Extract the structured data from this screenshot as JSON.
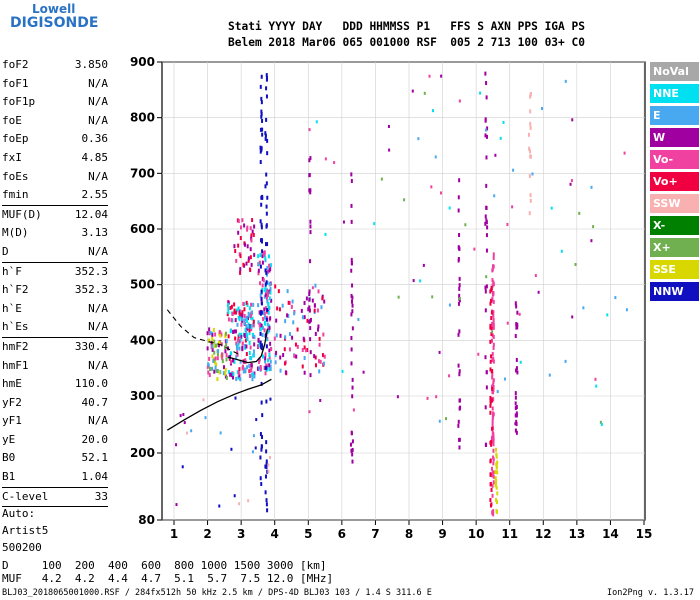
{
  "logo": {
    "top": "Lowell",
    "bottom": "DIGISONDE"
  },
  "header": {
    "line1": "Stati YYYY DAY   DDD HHMMSS P1   FFS S AXN PPS IGA PS",
    "line2": "Belem 2018 Mar06 065 001000 RSF  005 2 713 100 03+ C0"
  },
  "params": [
    {
      "name": "foF2",
      "value": "3.850"
    },
    {
      "name": "foF1",
      "value": "N/A"
    },
    {
      "name": "foF1p",
      "value": "N/A"
    },
    {
      "name": "foE",
      "value": "N/A"
    },
    {
      "name": "foEp",
      "value": "0.36"
    },
    {
      "name": "fxI",
      "value": "4.85"
    },
    {
      "name": "foEs",
      "value": "N/A"
    },
    {
      "name": "fmin",
      "value": "2.55",
      "sep": true
    },
    {
      "name": "MUF(D)",
      "value": "12.04"
    },
    {
      "name": "M(D)",
      "value": "3.13"
    },
    {
      "name": "D",
      "value": "N/A",
      "sep": true
    },
    {
      "name": "h`F",
      "value": "352.3"
    },
    {
      "name": "h`F2",
      "value": "352.3"
    },
    {
      "name": "h`E",
      "value": "N/A"
    },
    {
      "name": "h`Es",
      "value": "N/A",
      "sep": true
    },
    {
      "name": "hmF2",
      "value": "330.4"
    },
    {
      "name": "hmF1",
      "value": "N/A"
    },
    {
      "name": "hmE",
      "value": "110.0"
    },
    {
      "name": "yF2",
      "value": "40.7"
    },
    {
      "name": "yF1",
      "value": "N/A"
    },
    {
      "name": "yE",
      "value": "20.0"
    },
    {
      "name": "B0",
      "value": "52.1"
    },
    {
      "name": "B1",
      "value": "1.04",
      "sep": true
    },
    {
      "name": "C-level",
      "value": "33",
      "sep": true
    }
  ],
  "auto": {
    "l1": "Auto:",
    "l2": "Artist5",
    "l3": "500200"
  },
  "legend": [
    {
      "label": "NoVal",
      "color": "#a8a8a8"
    },
    {
      "label": "NNE",
      "color": "#00e0f0"
    },
    {
      "label": "E",
      "color": "#48a8f0"
    },
    {
      "label": "W",
      "color": "#a000a0"
    },
    {
      "label": "Vo-",
      "color": "#f040a0"
    },
    {
      "label": "Vo+",
      "color": "#f00040"
    },
    {
      "label": "SSW",
      "color": "#f8b0b0"
    },
    {
      "label": "X-",
      "color": "#008000"
    },
    {
      "label": "X+",
      "color": "#70b050"
    },
    {
      "label": "SSE",
      "color": "#d8d800"
    },
    {
      "label": "NNW",
      "color": "#1010c0"
    }
  ],
  "muf_table": {
    "d_row": "D     100  200  400  600  800 1000 1500 3000 [km]",
    "muf_row": "MUF   4.2  4.2  4.4  4.7  5.1  5.7  7.5 12.0 [MHz]"
  },
  "footer": {
    "left": "BLJ03_2018065001000.RSF / 284fx512h 50 kHz 2.5 km / DPS-4D BLJ03 103 / 1.4 S 311.6 E",
    "right": "Ion2Png v. 1.3.17"
  },
  "chart_data": {
    "type": "scatter",
    "xlim": [
      0.8,
      15
    ],
    "ylim": [
      80,
      900
    ],
    "xticks": [
      1,
      2,
      3,
      4,
      5,
      6,
      7,
      8,
      9,
      10,
      11,
      12,
      13,
      14,
      15
    ],
    "yticks": [
      80,
      200,
      300,
      400,
      500,
      600,
      700,
      800,
      900
    ],
    "ytick_labels": [
      "80",
      "200",
      "300",
      "400",
      "500",
      "600",
      "700",
      "800",
      "900"
    ],
    "grid": true,
    "profile_solid": [
      [
        0.8,
        240
      ],
      [
        1.3,
        258
      ],
      [
        1.8,
        275
      ],
      [
        2.3,
        290
      ],
      [
        2.8,
        303
      ],
      [
        3.2,
        312
      ],
      [
        3.6,
        320
      ],
      [
        3.9,
        330
      ]
    ],
    "profile_upper": [
      [
        2.6,
        370
      ],
      [
        2.9,
        365
      ],
      [
        3.2,
        360
      ],
      [
        3.45,
        362
      ],
      [
        3.6,
        372
      ],
      [
        3.7,
        392
      ],
      [
        3.78,
        420
      ]
    ],
    "profile_dashed": [
      [
        0.8,
        455
      ],
      [
        1.2,
        425
      ],
      [
        1.6,
        405
      ],
      [
        2.0,
        398
      ],
      [
        2.4,
        392
      ],
      [
        2.7,
        382
      ],
      [
        2.9,
        376
      ]
    ],
    "clusters": [
      {
        "x": [
          2.0,
          2.6
        ],
        "y": [
          330,
          420
        ],
        "n": 80,
        "colors": [
          "#f040a0",
          "#a000a0",
          "#48a8f0",
          "#70b050",
          "#d8d800"
        ]
      },
      {
        "x": [
          2.6,
          3.4
        ],
        "y": [
          330,
          470
        ],
        "n": 180,
        "colors": [
          "#48a8f0",
          "#f040a0",
          "#a000a0",
          "#00e0f0",
          "#f00040"
        ]
      },
      {
        "x": [
          3.5,
          3.9
        ],
        "y": [
          340,
          560
        ],
        "n": 140,
        "colors": [
          "#48a8f0",
          "#f040a0",
          "#a000a0",
          "#00e0f0"
        ]
      },
      {
        "x": [
          4.0,
          5.5
        ],
        "y": [
          340,
          500
        ],
        "n": 90,
        "colors": [
          "#a000a0",
          "#f040a0",
          "#48a8f0",
          "#f00040"
        ]
      },
      {
        "x": [
          2.8,
          3.4
        ],
        "y": [
          520,
          620
        ],
        "n": 40,
        "colors": [
          "#a000a0",
          "#f040a0",
          "#f00040"
        ]
      }
    ],
    "columns": [
      {
        "x": 3.6,
        "y": [
          90,
          890
        ],
        "n": 50,
        "color": "#1010c0"
      },
      {
        "x": 3.75,
        "y": [
          90,
          880
        ],
        "n": 45,
        "color": "#1010c0"
      },
      {
        "x": 10.5,
        "y": [
          90,
          560
        ],
        "n": 90,
        "color": "#f040a0"
      },
      {
        "x": 10.45,
        "y": [
          100,
          500
        ],
        "n": 40,
        "color": "#f00040"
      },
      {
        "x": 10.3,
        "y": [
          200,
          900
        ],
        "n": 30,
        "color": "#a000a0"
      },
      {
        "x": 11.2,
        "y": [
          230,
          470
        ],
        "n": 25,
        "color": "#a000a0"
      },
      {
        "x": 9.5,
        "y": [
          200,
          700
        ],
        "n": 30,
        "color": "#a000a0"
      },
      {
        "x": 6.3,
        "y": [
          180,
          700
        ],
        "n": 30,
        "color": "#a000a0"
      },
      {
        "x": 5.05,
        "y": [
          300,
          760
        ],
        "n": 20,
        "color": "#a000a0"
      },
      {
        "x": 11.6,
        "y": [
          620,
          860
        ],
        "n": 15,
        "color": "#f8b0b0"
      },
      {
        "x": 10.6,
        "y": [
          90,
          210
        ],
        "n": 20,
        "color": "#d8d800"
      }
    ],
    "scatter": [
      {
        "x": [
          5,
          14.5
        ],
        "y": [
          250,
          880
        ],
        "n": 90,
        "colors": [
          "#48a8f0",
          "#a000a0",
          "#f040a0",
          "#00e0f0",
          "#70b050"
        ]
      },
      {
        "x": [
          1,
          4
        ],
        "y": [
          100,
          300
        ],
        "n": 25,
        "colors": [
          "#f8b0b0",
          "#a000a0",
          "#48a8f0",
          "#1010c0"
        ]
      }
    ]
  }
}
